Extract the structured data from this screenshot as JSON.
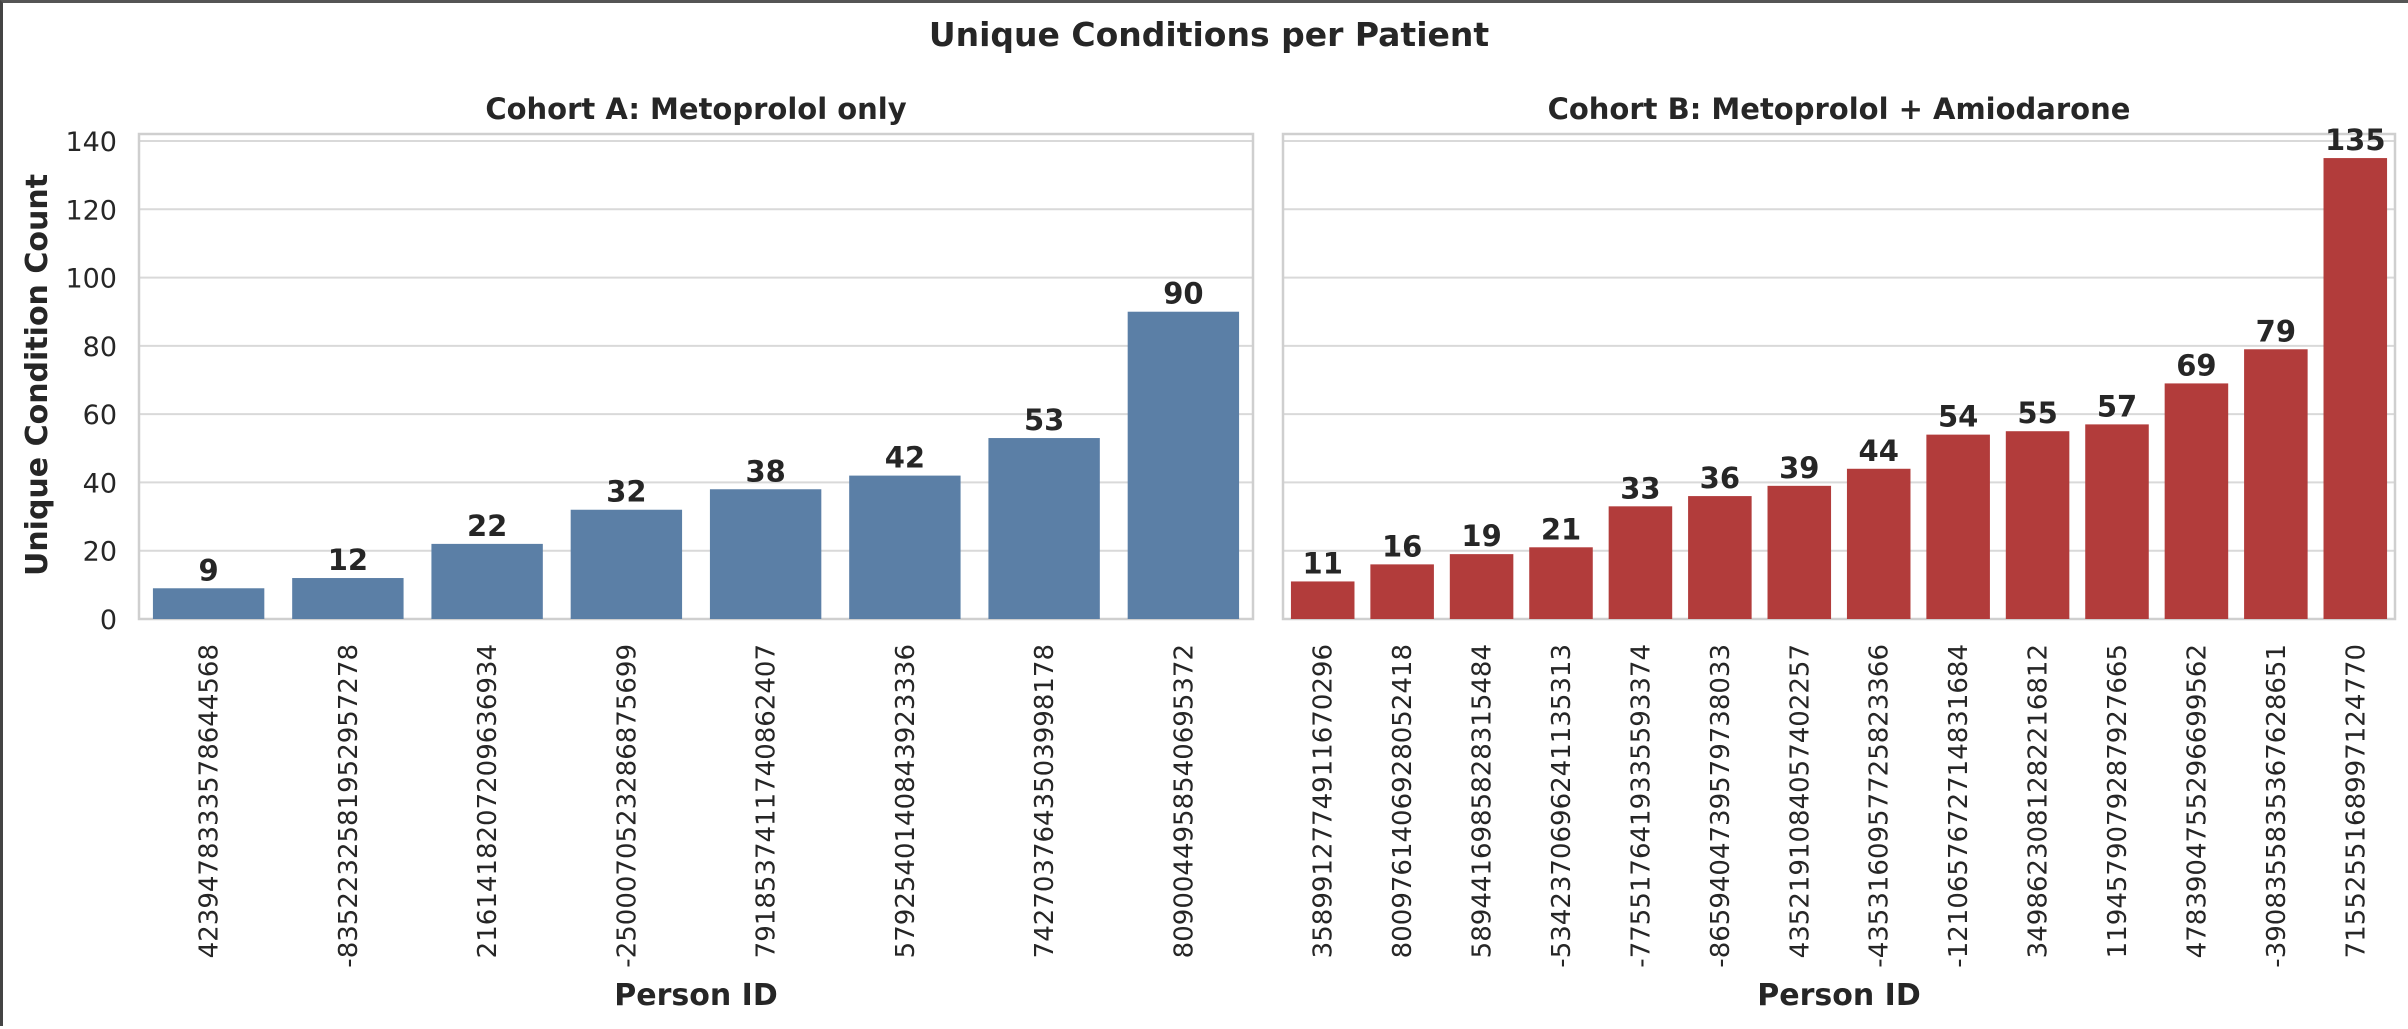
{
  "chart_data": {
    "title": "Unique Conditions per Patient",
    "ylabel": "Unique Condition Count",
    "ylim": [
      0,
      140
    ],
    "yticks": [
      0,
      20,
      40,
      60,
      80,
      100,
      120,
      140
    ],
    "grid": true,
    "panels": [
      {
        "type": "bar",
        "title": "Cohort A: Metoprolol only",
        "xlabel": "Person ID",
        "color": "#5b7fa6",
        "categories": [
          "4239478333578644568",
          "-8352232581952957278",
          "2161418207209636934",
          "-2500070523286875699",
          "7918537411740862407",
          "5792540140843923336",
          "7427037643503998178",
          "8090044958540695372"
        ],
        "values": [
          9,
          12,
          22,
          32,
          38,
          42,
          53,
          90
        ]
      },
      {
        "type": "bar",
        "title": "Cohort B: Metoprolol + Amiodarone",
        "xlabel": "Person ID",
        "color": "#b23c3b",
        "categories": [
          "3589912774911670296",
          "8009761406928052418",
          "5894416985828315484",
          "-5342370696241135313",
          "-7755176419335593374",
          "-8659404739579738033",
          "4352191084057402257",
          "-4353160957725823366",
          "-1210657672714831684",
          "3498623081282216812",
          "1194579079287927665",
          "4783904755296699562",
          "-3908355835367628651",
          "7155255168997124770"
        ],
        "values": [
          11,
          16,
          19,
          21,
          33,
          36,
          39,
          44,
          54,
          55,
          57,
          69,
          79,
          135
        ]
      }
    ]
  }
}
